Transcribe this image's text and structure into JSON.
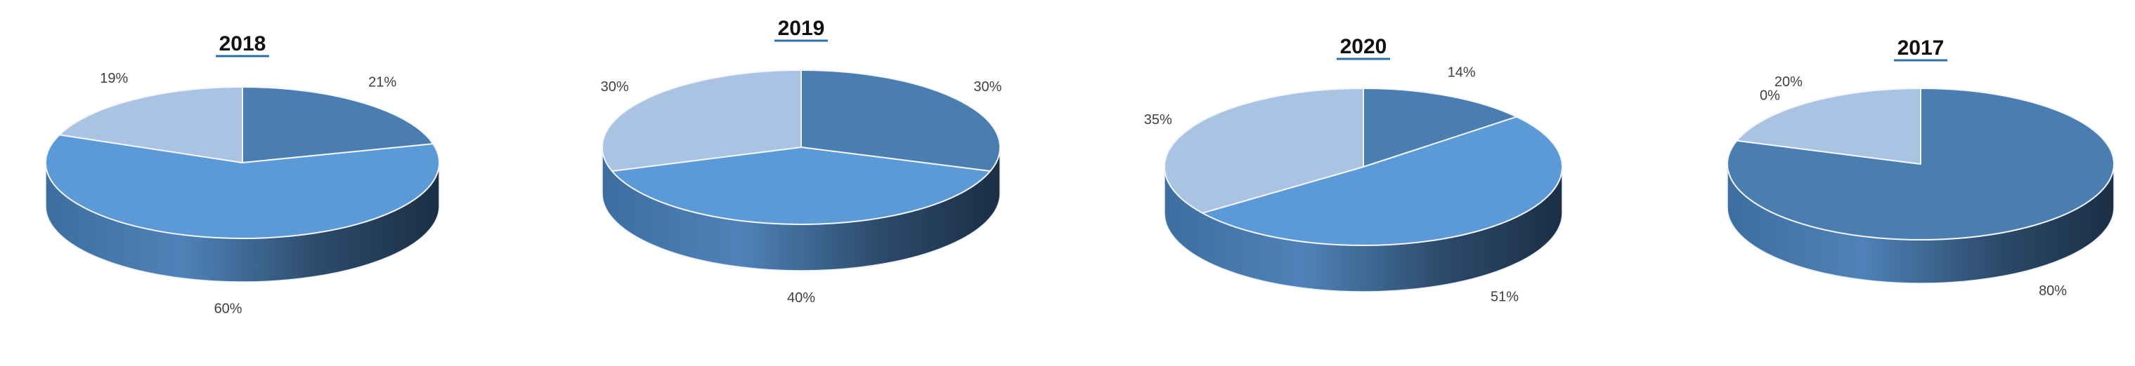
{
  "colors": {
    "slice_dark": "#4a7eb0",
    "slice_mid": "#5b9ad6",
    "slice_light": "#abc3e2",
    "title_underline": "#2e6ea6"
  },
  "chart_data": [
    {
      "type": "pie",
      "title": "2018",
      "slices": [
        {
          "label": "21%",
          "value": 21,
          "color": "#4a7eb0"
        },
        {
          "label": "60%",
          "value": 60,
          "color": "#5b9ad6"
        },
        {
          "label": "19%",
          "value": 19,
          "color": "#abc3e2"
        }
      ]
    },
    {
      "type": "pie",
      "title": "2019",
      "slices": [
        {
          "label": "30%",
          "value": 30,
          "color": "#4a7eb0"
        },
        {
          "label": "40%",
          "value": 40,
          "color": "#5b9ad6"
        },
        {
          "label": "30%",
          "value": 30,
          "color": "#abc3e2"
        }
      ]
    },
    {
      "type": "pie",
      "title": "2020",
      "slices": [
        {
          "label": "14%",
          "value": 14,
          "color": "#4a7eb0"
        },
        {
          "label": "51%",
          "value": 51,
          "color": "#5b9ad6"
        },
        {
          "label": "35%",
          "value": 35,
          "color": "#abc3e2"
        }
      ]
    },
    {
      "type": "pie",
      "title": "2017",
      "slices": [
        {
          "label": "80%",
          "value": 80,
          "color": "#4a7eb0"
        },
        {
          "label": "0%",
          "value": 0,
          "color": "#5b9ad6"
        },
        {
          "label": "20%",
          "value": 20,
          "color": "#abc3e2"
        }
      ]
    }
  ]
}
